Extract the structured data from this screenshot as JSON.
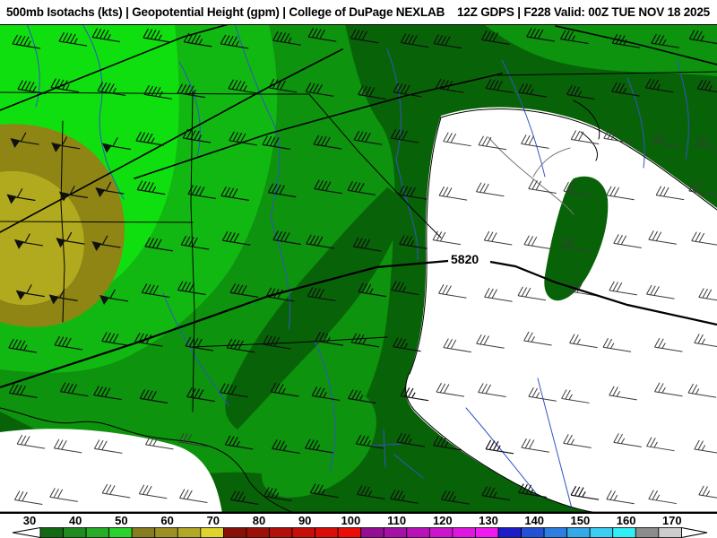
{
  "title_bar": {
    "left": "500mb Isotachs (kts) | Geopotential Height (gpm) | College of DuPage NEXLAB",
    "right": "12Z GDPS | F228 Valid: 00Z TUE NOV 18 2025"
  },
  "map": {
    "contour_label": "5820"
  },
  "chart_data": {
    "type": "heatmap",
    "title": "500mb Isotachs (kts) | Geopotential Height (gpm)",
    "source": "College of DuPage NEXLAB",
    "model": "12Z GDPS",
    "forecast_hour": "F228",
    "valid_time": "00Z TUE NOV 18 2025",
    "height_contours_gpm": [
      5820
    ],
    "legend_position": "bottom",
    "colorbar": {
      "units": "kts",
      "tick_labels": [
        "30",
        "40",
        "50",
        "60",
        "70",
        "80",
        "90",
        "100",
        "110",
        "120",
        "130",
        "140",
        "150",
        "160",
        "170"
      ],
      "segment_start_values": [
        30,
        35,
        40,
        45,
        50,
        55,
        60,
        65,
        70,
        75,
        80,
        85,
        90,
        95,
        100,
        105,
        110,
        115,
        120,
        125,
        130,
        135,
        140,
        145,
        150,
        155,
        160,
        165
      ],
      "segment_colors": [
        "#136813",
        "#1f8c1f",
        "#25ad25",
        "#2bd22b",
        "#877c1e",
        "#9c9022",
        "#b3a826",
        "#e0d32c",
        "#871108",
        "#9d1008",
        "#b21008",
        "#c60f08",
        "#d90e08",
        "#ec0d07",
        "#930e93",
        "#a710a7",
        "#ba12ba",
        "#cd14cd",
        "#df16df",
        "#f218f2",
        "#1c1cc8",
        "#2450d5",
        "#2c7fe0",
        "#33a9e9",
        "#3bcef2",
        "#30eff5",
        "#8c8c8c",
        "#cdcdcd"
      ]
    },
    "isotach_regions_kts": {
      "background_lt_30": "#ffffff",
      "30_35": "#086308",
      "35_40": "#0d930d",
      "40_45": "#12b812",
      "45_50": "#0fdf0f",
      "50_55": "#8e8514",
      "55_60": "#b2aa1e"
    }
  },
  "map_colors": {
    "river": "#3253c6",
    "border": "#000000",
    "coast_gray": "#777777",
    "barb_land": "#101010",
    "barb_ocean": "#3a3a3a"
  },
  "wind_barbs": {
    "zones": {
      "olive": {
        "pennant": 1,
        "full": 1,
        "half": 0
      },
      "nw45": {
        "pennant": 0,
        "full": 4,
        "half": 1
      },
      "mid40": {
        "pennant": 0,
        "full": 4,
        "half": 0
      },
      "land35": {
        "pennant": 0,
        "full": 3,
        "half": 1
      },
      "ocean_near": {
        "pennant": 0,
        "full": 3,
        "half": 0
      },
      "ocean_far": {
        "pennant": 0,
        "full": 2,
        "half": 1
      }
    }
  }
}
